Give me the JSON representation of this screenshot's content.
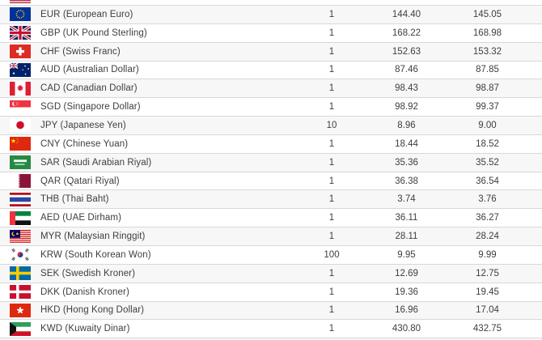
{
  "table": {
    "rows": [
      {
        "code": "EUR",
        "label": "EUR (European Euro)",
        "unit": "1",
        "rate_1": "144.40",
        "rate_2": "145.05"
      },
      {
        "code": "GBP",
        "label": "GBP (UK Pound Sterling)",
        "unit": "1",
        "rate_1": "168.22",
        "rate_2": "168.98"
      },
      {
        "code": "CHF",
        "label": "CHF (Swiss Franc)",
        "unit": "1",
        "rate_1": "152.63",
        "rate_2": "153.32"
      },
      {
        "code": "AUD",
        "label": "AUD (Australian Dollar)",
        "unit": "1",
        "rate_1": "87.46",
        "rate_2": "87.85"
      },
      {
        "code": "CAD",
        "label": "CAD (Canadian Dollar)",
        "unit": "1",
        "rate_1": "98.43",
        "rate_2": "98.87"
      },
      {
        "code": "SGD",
        "label": "SGD (Singapore Dollar)",
        "unit": "1",
        "rate_1": "98.92",
        "rate_2": "99.37"
      },
      {
        "code": "JPY",
        "label": "JPY (Japanese Yen)",
        "unit": "10",
        "rate_1": "8.96",
        "rate_2": "9.00"
      },
      {
        "code": "CNY",
        "label": "CNY (Chinese Yuan)",
        "unit": "1",
        "rate_1": "18.44",
        "rate_2": "18.52"
      },
      {
        "code": "SAR",
        "label": "SAR (Saudi Arabian Riyal)",
        "unit": "1",
        "rate_1": "35.36",
        "rate_2": "35.52"
      },
      {
        "code": "QAR",
        "label": "QAR (Qatari Riyal)",
        "unit": "1",
        "rate_1": "36.38",
        "rate_2": "36.54"
      },
      {
        "code": "THB",
        "label": "THB (Thai Baht)",
        "unit": "1",
        "rate_1": "3.74",
        "rate_2": "3.76"
      },
      {
        "code": "AED",
        "label": "AED (UAE Dirham)",
        "unit": "1",
        "rate_1": "36.11",
        "rate_2": "36.27"
      },
      {
        "code": "MYR",
        "label": "MYR (Malaysian Ringgit)",
        "unit": "1",
        "rate_1": "28.11",
        "rate_2": "28.24"
      },
      {
        "code": "KRW",
        "label": "KRW (South Korean Won)",
        "unit": "100",
        "rate_1": "9.95",
        "rate_2": "9.99"
      },
      {
        "code": "SEK",
        "label": "SEK (Swedish Kroner)",
        "unit": "1",
        "rate_1": "12.69",
        "rate_2": "12.75"
      },
      {
        "code": "DKK",
        "label": "DKK (Danish Kroner)",
        "unit": "1",
        "rate_1": "19.36",
        "rate_2": "19.45"
      },
      {
        "code": "HKD",
        "label": "HKD (Hong Kong Dollar)",
        "unit": "1",
        "rate_1": "16.96",
        "rate_2": "17.04"
      },
      {
        "code": "KWD",
        "label": "KWD (Kuwaity Dinar)",
        "unit": "1",
        "rate_1": "430.80",
        "rate_2": "432.75"
      }
    ],
    "partial_top_flag": "usd",
    "partial_bottom_flag": "next"
  },
  "colors": {
    "row_shade": "#f7f7f7",
    "divider": "#d8d8d8",
    "text": "#3e3e3e"
  }
}
